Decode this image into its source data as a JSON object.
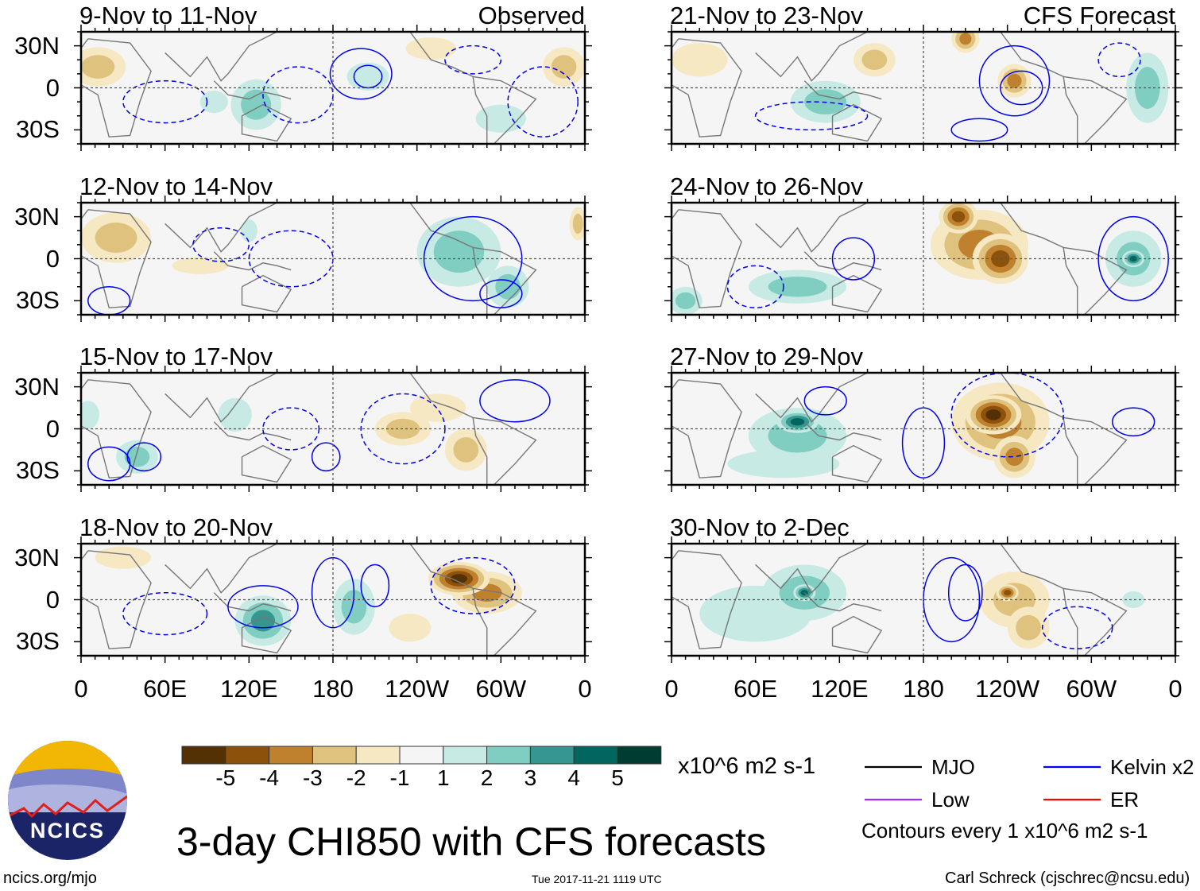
{
  "chart_data": {
    "type": "heatmap",
    "title": "3-day CHI850 with CFS forecasts",
    "variable": "CHI850 anomaly",
    "units": "x10^6 m2 s-1",
    "contour_note": "Contours every 1 x10^6 m2 s-1",
    "column_headers": {
      "left": "Observed",
      "right": "CFS Forecast"
    },
    "lat_ticks": [
      "30N",
      "0",
      "30S"
    ],
    "lat_values": [
      30,
      0,
      -30
    ],
    "lat_range": [
      -40,
      40
    ],
    "lon_ticks": [
      "0",
      "60E",
      "120E",
      "180",
      "120W",
      "60W",
      "0"
    ],
    "lon_values": [
      0,
      60,
      120,
      180,
      240,
      300,
      360
    ],
    "colorbar": {
      "labels": [
        "-5",
        "-4",
        "-3",
        "-2",
        "-1",
        "1",
        "2",
        "3",
        "4",
        "5"
      ],
      "colors": [
        "#543005",
        "#8c510a",
        "#bf812d",
        "#dfc27d",
        "#f6e8c3",
        "#f5f5f5",
        "#c7eae5",
        "#80cdc1",
        "#35978f",
        "#01665e",
        "#003c30"
      ]
    },
    "legend": [
      {
        "label": "MJO",
        "color": "#000000"
      },
      {
        "label": "Kelvin x2",
        "color": "#0000ff"
      },
      {
        "label": "Low",
        "color": "#9b30ff"
      },
      {
        "label": "ER",
        "color": "#ff0000"
      }
    ],
    "panels": [
      {
        "title": "9-Nov to 11-Nov",
        "tag": "Observed",
        "column": 0,
        "row": 0,
        "features": [
          [
            12,
            15,
            -2,
            20,
            14
          ],
          [
            345,
            15,
            -2,
            15,
            14
          ],
          [
            250,
            28,
            -1.5,
            18,
            8
          ],
          [
            125,
            -12,
            2,
            18,
            18
          ],
          [
            205,
            8,
            1,
            15,
            10
          ],
          [
            300,
            -22,
            1.5,
            18,
            10
          ],
          [
            95,
            -10,
            1,
            10,
            8
          ]
        ],
        "contours": [
          [
            200,
            10,
            22,
            18,
            0
          ],
          [
            205,
            8,
            10,
            8,
            0
          ],
          [
            155,
            -5,
            25,
            20,
            1
          ],
          [
            60,
            -10,
            30,
            15,
            1
          ],
          [
            330,
            -10,
            25,
            25,
            1
          ],
          [
            280,
            20,
            20,
            10,
            1
          ]
        ]
      },
      {
        "title": "12-Nov to 14-Nov",
        "tag": "",
        "column": 0,
        "row": 1,
        "features": [
          [
            25,
            15,
            -2,
            25,
            18
          ],
          [
            85,
            -5,
            -1.5,
            20,
            6
          ],
          [
            270,
            5,
            2,
            30,
            25
          ],
          [
            305,
            -20,
            2,
            15,
            15
          ],
          [
            355,
            25,
            -2,
            6,
            12
          ],
          [
            120,
            20,
            1,
            6,
            8
          ]
        ],
        "contours": [
          [
            280,
            0,
            35,
            30,
            0
          ],
          [
            300,
            -25,
            15,
            10,
            0
          ],
          [
            20,
            -30,
            15,
            10,
            0
          ],
          [
            150,
            0,
            30,
            20,
            1
          ],
          [
            100,
            10,
            20,
            12,
            1
          ]
        ]
      },
      {
        "title": "15-Nov to 17-Nov",
        "tag": "",
        "column": 0,
        "row": 2,
        "features": [
          [
            40,
            -20,
            2,
            15,
            12
          ],
          [
            110,
            10,
            1.5,
            12,
            12
          ],
          [
            230,
            0,
            -2,
            20,
            12
          ],
          [
            275,
            -15,
            -2,
            15,
            15
          ],
          [
            255,
            15,
            -1.5,
            20,
            10
          ],
          [
            5,
            10,
            1.5,
            8,
            10
          ]
        ],
        "contours": [
          [
            20,
            -25,
            15,
            12,
            0
          ],
          [
            45,
            -20,
            12,
            10,
            0
          ],
          [
            310,
            20,
            25,
            15,
            0
          ],
          [
            175,
            -20,
            10,
            10,
            0
          ],
          [
            230,
            0,
            30,
            25,
            1
          ],
          [
            150,
            0,
            20,
            15,
            1
          ]
        ]
      },
      {
        "title": "18-Nov to 20-Nov",
        "tag": "",
        "column": 0,
        "row": 3,
        "features": [
          [
            130,
            -15,
            3,
            20,
            18
          ],
          [
            195,
            -5,
            2,
            15,
            20
          ],
          [
            270,
            15,
            -5,
            22,
            12
          ],
          [
            290,
            5,
            -3,
            25,
            15
          ],
          [
            235,
            -20,
            -1.5,
            15,
            10
          ],
          [
            30,
            30,
            -1.5,
            20,
            8
          ]
        ],
        "contours": [
          [
            180,
            5,
            15,
            25,
            0
          ],
          [
            210,
            10,
            10,
            15,
            0
          ],
          [
            130,
            -5,
            25,
            15,
            0
          ],
          [
            280,
            10,
            30,
            20,
            1
          ],
          [
            60,
            -10,
            30,
            15,
            1
          ]
        ]
      },
      {
        "title": "21-Nov to 23-Nov",
        "tag": "CFS Forecast",
        "column": 1,
        "row": 0,
        "features": [
          [
            210,
            35,
            -3,
            10,
            10
          ],
          [
            245,
            5,
            -3.5,
            12,
            12
          ],
          [
            145,
            20,
            -2,
            15,
            12
          ],
          [
            110,
            -10,
            2,
            25,
            15
          ],
          [
            340,
            0,
            2,
            15,
            25
          ],
          [
            20,
            20,
            -1.5,
            20,
            12
          ]
        ],
        "contours": [
          [
            245,
            5,
            25,
            25,
            0
          ],
          [
            250,
            0,
            15,
            12,
            0
          ],
          [
            220,
            -30,
            20,
            8,
            0
          ],
          [
            320,
            20,
            15,
            12,
            1
          ],
          [
            100,
            -20,
            40,
            10,
            1
          ]
        ]
      },
      {
        "title": "24-Nov to 26-Nov",
        "tag": "",
        "column": 1,
        "row": 1,
        "features": [
          [
            205,
            30,
            -4,
            14,
            12
          ],
          [
            235,
            0,
            -4,
            20,
            18
          ],
          [
            220,
            10,
            -3,
            35,
            25
          ],
          [
            330,
            0,
            4,
            8,
            6
          ],
          [
            330,
            0,
            2,
            20,
            20
          ],
          [
            90,
            -20,
            2,
            35,
            12
          ],
          [
            10,
            -30,
            2,
            12,
            10
          ]
        ],
        "contours": [
          [
            330,
            0,
            25,
            30,
            0
          ],
          [
            130,
            0,
            15,
            15,
            0
          ],
          [
            60,
            -20,
            20,
            15,
            1
          ]
        ]
      },
      {
        "title": "27-Nov to 29-Nov",
        "tag": "",
        "column": 1,
        "row": 2,
        "features": [
          [
            230,
            10,
            -5,
            20,
            14
          ],
          [
            235,
            5,
            -3,
            35,
            28
          ],
          [
            245,
            -20,
            -3,
            15,
            15
          ],
          [
            90,
            5,
            4,
            15,
            8
          ],
          [
            90,
            -5,
            2.5,
            35,
            20
          ],
          [
            80,
            -25,
            1.5,
            40,
            10
          ]
        ],
        "contours": [
          [
            180,
            -10,
            15,
            25,
            0
          ],
          [
            330,
            5,
            15,
            10,
            0
          ],
          [
            110,
            20,
            15,
            10,
            0
          ],
          [
            240,
            10,
            40,
            30,
            1
          ]
        ]
      },
      {
        "title": "30-Nov to 2-Dec",
        "tag": "",
        "column": 1,
        "row": 3,
        "features": [
          [
            95,
            5,
            4,
            8,
            6
          ],
          [
            95,
            5,
            2.5,
            30,
            20
          ],
          [
            60,
            -10,
            1.5,
            40,
            20
          ],
          [
            240,
            5,
            -4,
            8,
            6
          ],
          [
            245,
            0,
            -2,
            25,
            20
          ],
          [
            255,
            -20,
            -2.5,
            15,
            15
          ],
          [
            330,
            0,
            1.5,
            8,
            6
          ]
        ],
        "contours": [
          [
            210,
            5,
            12,
            20,
            0
          ],
          [
            200,
            0,
            20,
            30,
            0
          ],
          [
            290,
            -20,
            25,
            15,
            1
          ]
        ]
      }
    ]
  },
  "footer": {
    "site": "ncics.org/mjo",
    "timestamp": "Tue 2017-11-21 1119 UTC",
    "author": "Carl Schreck (cjschrec@ncsu.edu)",
    "logo_text": "NCICS"
  }
}
